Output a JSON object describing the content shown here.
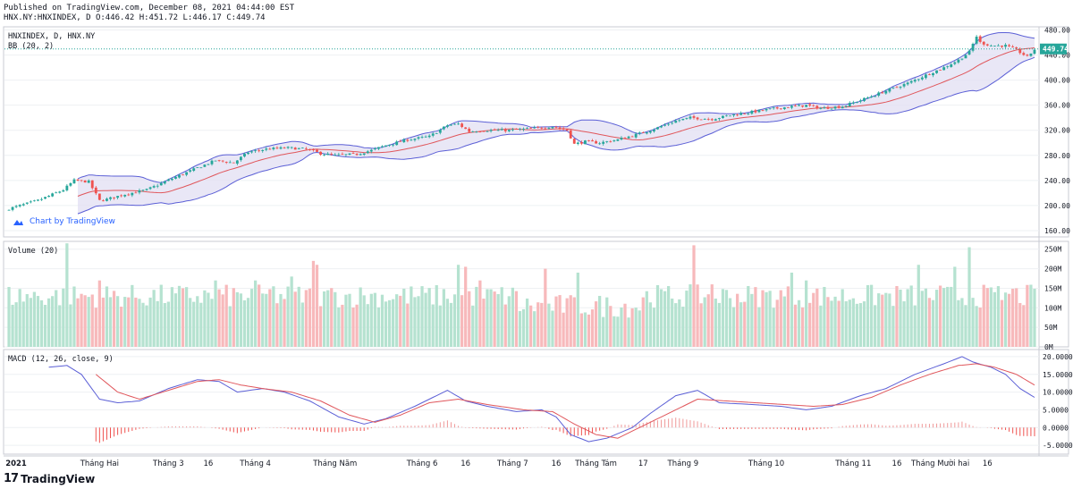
{
  "header": {
    "published": "Published on TradingView.com, December 08, 2021 04:44:00 EST",
    "ohlc": "HNX.NY:HNXINDEX, D O:446.42 H:451.72 L:446.17 C:449.74"
  },
  "footer": {
    "logo_mark": "17",
    "logo_text": "TradingView"
  },
  "watermark": {
    "text": "Chart by TradingView"
  },
  "colors": {
    "up": "#26a69a",
    "down": "#ef5350",
    "bb_fill": "#e1dff3",
    "bb_band": "#5b5fd6",
    "bb_basis": "#e0565b",
    "macd": "#5b5fd6",
    "signal": "#e0565b",
    "vol_up": "#b5e2d0",
    "vol_down": "#f7b9bb",
    "last_price": "#26a69a"
  },
  "chart_data": [
    {
      "type": "candlestick",
      "legend": [
        "HNXINDEX, D, HNX.NY",
        "BB (20, 2)"
      ],
      "last_price": "449.74",
      "ylim": [
        150,
        485
      ],
      "y_ticks": [
        "480.00",
        "440.00",
        "400.00",
        "360.00",
        "320.00",
        "280.00",
        "240.00",
        "200.00",
        "160.00"
      ],
      "close_keyframes": [
        [
          0,
          195
        ],
        [
          8,
          208
        ],
        [
          15,
          225
        ],
        [
          18,
          240
        ],
        [
          22,
          238
        ],
        [
          25,
          208
        ],
        [
          27,
          210
        ],
        [
          32,
          218
        ],
        [
          38,
          225
        ],
        [
          45,
          243
        ],
        [
          52,
          260
        ],
        [
          57,
          272
        ],
        [
          62,
          268
        ],
        [
          66,
          285
        ],
        [
          71,
          290
        ],
        [
          77,
          292
        ],
        [
          82,
          290
        ],
        [
          86,
          283
        ],
        [
          90,
          280
        ],
        [
          96,
          282
        ],
        [
          100,
          288
        ],
        [
          104,
          296
        ],
        [
          110,
          305
        ],
        [
          116,
          310
        ],
        [
          121,
          328
        ],
        [
          124,
          330
        ],
        [
          127,
          318
        ],
        [
          131,
          320
        ],
        [
          138,
          320
        ],
        [
          145,
          323
        ],
        [
          150,
          326
        ],
        [
          154,
          320
        ],
        [
          156,
          298
        ],
        [
          159,
          302
        ],
        [
          163,
          300
        ],
        [
          168,
          305
        ],
        [
          173,
          313
        ],
        [
          178,
          322
        ],
        [
          184,
          335
        ],
        [
          188,
          340
        ],
        [
          194,
          338
        ],
        [
          200,
          345
        ],
        [
          207,
          351
        ],
        [
          213,
          356
        ],
        [
          220,
          360
        ],
        [
          224,
          355
        ],
        [
          230,
          358
        ],
        [
          236,
          370
        ],
        [
          243,
          385
        ],
        [
          248,
          395
        ],
        [
          253,
          408
        ],
        [
          258,
          420
        ],
        [
          262,
          432
        ],
        [
          265,
          445
        ],
        [
          267,
          470
        ],
        [
          268,
          460
        ],
        [
          271,
          455
        ],
        [
          275,
          455
        ],
        [
          278,
          448
        ],
        [
          281,
          437
        ],
        [
          283,
          449
        ]
      ],
      "candles_total": 284
    },
    {
      "type": "bar",
      "legend": [
        "Volume (20)"
      ],
      "ylim": [
        0,
        270
      ],
      "y_ticks": [
        "250M",
        "200M",
        "150M",
        "100M",
        "50M",
        "0M"
      ],
      "unit": "M",
      "base_level": 130,
      "spikes": [
        [
          16,
          265
        ],
        [
          25,
          170
        ],
        [
          57,
          170
        ],
        [
          68,
          170
        ],
        [
          73,
          155
        ],
        [
          78,
          180
        ],
        [
          84,
          220
        ],
        [
          85,
          210
        ],
        [
          88,
          145
        ],
        [
          124,
          210
        ],
        [
          126,
          205
        ],
        [
          130,
          170
        ],
        [
          148,
          200
        ],
        [
          157,
          190
        ],
        [
          189,
          260
        ],
        [
          194,
          160
        ],
        [
          216,
          190
        ],
        [
          220,
          170
        ],
        [
          251,
          210
        ],
        [
          261,
          205
        ],
        [
          265,
          255
        ],
        [
          272,
          140
        ],
        [
          278,
          150
        ]
      ]
    },
    {
      "type": "line",
      "legend": [
        "MACD (12, 26, close, 9)"
      ],
      "ylim": [
        -7.5,
        22
      ],
      "y_ticks": [
        "20.0000",
        "15.0000",
        "10.0000",
        "5.0000",
        "0.0000",
        "-5.0000"
      ],
      "macd_keyframes": [
        [
          11,
          17
        ],
        [
          16,
          17.5
        ],
        [
          20,
          15
        ],
        [
          25,
          8
        ],
        [
          30,
          7
        ],
        [
          36,
          7.5
        ],
        [
          44,
          11
        ],
        [
          52,
          13.5
        ],
        [
          58,
          13
        ],
        [
          63,
          10
        ],
        [
          70,
          11
        ],
        [
          76,
          10
        ],
        [
          83,
          7.5
        ],
        [
          91,
          3
        ],
        [
          98,
          1
        ],
        [
          104,
          2.5
        ],
        [
          112,
          6
        ],
        [
          119,
          9.5
        ],
        [
          121,
          10.5
        ],
        [
          126,
          7.5
        ],
        [
          132,
          6
        ],
        [
          140,
          4.5
        ],
        [
          147,
          5
        ],
        [
          151,
          3
        ],
        [
          155,
          -2
        ],
        [
          160,
          -4
        ],
        [
          165,
          -3
        ],
        [
          172,
          0
        ],
        [
          177,
          4
        ],
        [
          184,
          9
        ],
        [
          190,
          10.5
        ],
        [
          196,
          7
        ],
        [
          205,
          6.5
        ],
        [
          213,
          6
        ],
        [
          220,
          5
        ],
        [
          227,
          6
        ],
        [
          235,
          9
        ],
        [
          242,
          11
        ],
        [
          250,
          15
        ],
        [
          258,
          18
        ],
        [
          263,
          20
        ],
        [
          266,
          18.5
        ],
        [
          271,
          17
        ],
        [
          275,
          15
        ],
        [
          279,
          11
        ],
        [
          283,
          8.5
        ]
      ],
      "signal_keyframes": [
        [
          24,
          15
        ],
        [
          30,
          10
        ],
        [
          36,
          8
        ],
        [
          44,
          10.5
        ],
        [
          52,
          13
        ],
        [
          58,
          13.5
        ],
        [
          64,
          12
        ],
        [
          70,
          11
        ],
        [
          78,
          10
        ],
        [
          86,
          7.5
        ],
        [
          94,
          3.5
        ],
        [
          101,
          1.5
        ],
        [
          108,
          3.5
        ],
        [
          116,
          7
        ],
        [
          124,
          8
        ],
        [
          132,
          6.5
        ],
        [
          142,
          5
        ],
        [
          150,
          4.5
        ],
        [
          156,
          1
        ],
        [
          162,
          -2
        ],
        [
          168,
          -3
        ],
        [
          174,
          0
        ],
        [
          182,
          4
        ],
        [
          190,
          8
        ],
        [
          198,
          7.5
        ],
        [
          206,
          7
        ],
        [
          214,
          6.5
        ],
        [
          222,
          6
        ],
        [
          230,
          6.5
        ],
        [
          238,
          8.5
        ],
        [
          246,
          12
        ],
        [
          254,
          15
        ],
        [
          262,
          17.5
        ],
        [
          267,
          18
        ],
        [
          272,
          17
        ],
        [
          278,
          15
        ],
        [
          283,
          12
        ]
      ]
    }
  ],
  "x_axis": {
    "labels": [
      {
        "text": "2021",
        "bold": true,
        "at": 0
      },
      {
        "text": "Tháng Hai",
        "at": 25
      },
      {
        "text": "Tháng 3",
        "at": 44
      },
      {
        "text": "16",
        "at": 55
      },
      {
        "text": "Tháng 4",
        "at": 68
      },
      {
        "text": "Tháng Năm",
        "at": 90
      },
      {
        "text": "Tháng 6",
        "at": 114
      },
      {
        "text": "16",
        "at": 126
      },
      {
        "text": "Tháng 7",
        "at": 139
      },
      {
        "text": "16",
        "at": 151
      },
      {
        "text": "Tháng Tám",
        "at": 162
      },
      {
        "text": "17",
        "at": 175
      },
      {
        "text": "Tháng 9",
        "at": 186
      },
      {
        "text": "Tháng 10",
        "at": 209
      },
      {
        "text": "Tháng 11",
        "at": 233
      },
      {
        "text": "16",
        "at": 245
      },
      {
        "text": "Tháng Mười hai",
        "at": 257
      },
      {
        "text": "16",
        "at": 270
      }
    ]
  }
}
